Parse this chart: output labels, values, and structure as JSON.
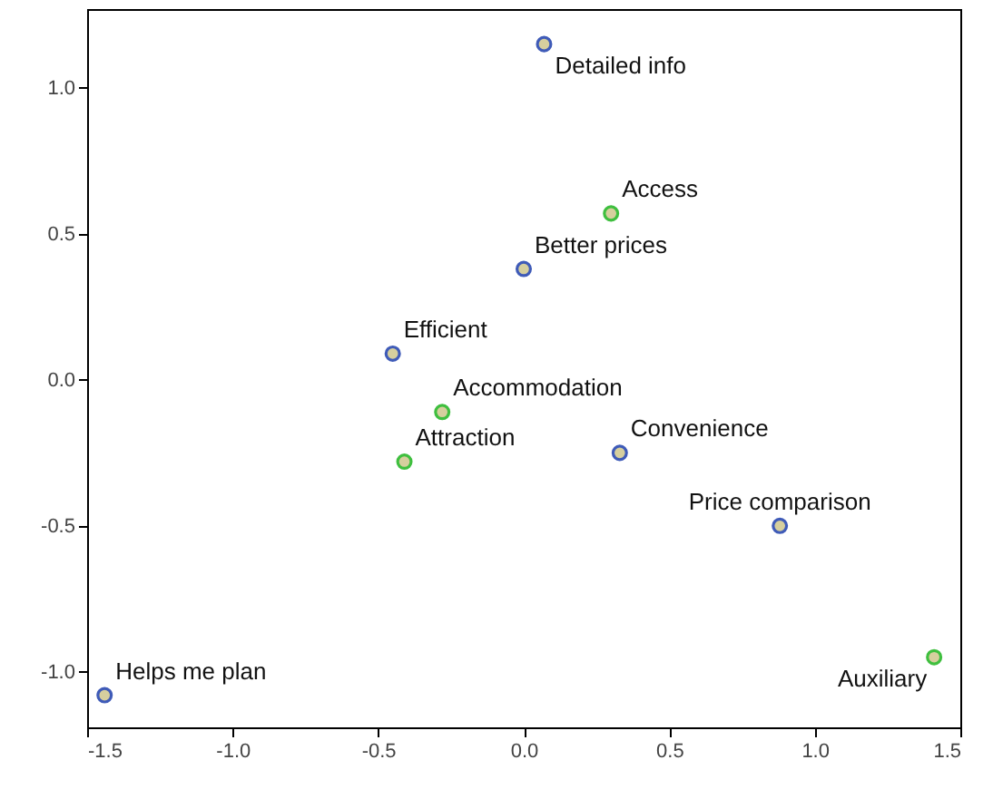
{
  "chart_data": {
    "type": "scatter",
    "xlim": [
      -1.5,
      1.5
    ],
    "ylim": [
      -1.19,
      1.27
    ],
    "xticks": [
      {
        "value": -1.5,
        "label": "-1.5"
      },
      {
        "value": -1,
        "label": "-1.0"
      },
      {
        "value": -0.5,
        "label": "-0.5"
      },
      {
        "value": 0,
        "label": "0.0"
      },
      {
        "value": 0.5,
        "label": "0.5"
      },
      {
        "value": 1,
        "label": "1.0"
      },
      {
        "value": 1.5,
        "label": "1.5"
      }
    ],
    "yticks": [
      {
        "value": -1,
        "label": "-1.0"
      },
      {
        "value": -0.5,
        "label": "-0.5"
      },
      {
        "value": 0,
        "label": "0.0"
      },
      {
        "value": 0.5,
        "label": "0.5"
      },
      {
        "value": 1,
        "label": "1.0"
      }
    ],
    "grid": false,
    "marker": "circle",
    "series": [
      {
        "color": "#3f5bb8",
        "x": [
          0.07,
          0.0,
          -0.45,
          0.33,
          0.88,
          -1.44
        ],
        "values": [
          1.15,
          0.38,
          0.09,
          -0.25,
          -0.5,
          -1.08
        ]
      },
      {
        "color": "#3fbf3f",
        "x": [
          0.3,
          -0.28,
          -0.41,
          1.41
        ],
        "values": [
          0.57,
          -0.11,
          -0.28,
          -0.95
        ]
      }
    ],
    "annotations": [
      {
        "text": "Detailed info",
        "x": 0.07,
        "y": 1.15
      },
      {
        "text": "Better prices",
        "x": 0.0,
        "y": 0.38
      },
      {
        "text": "Efficient",
        "x": -0.45,
        "y": 0.09
      },
      {
        "text": "Convenience",
        "x": 0.33,
        "y": -0.25
      },
      {
        "text": "Price comparison",
        "x": 0.88,
        "y": -0.5
      },
      {
        "text": "Helps me plan",
        "x": -1.44,
        "y": -1.08
      },
      {
        "text": "Access",
        "x": 0.3,
        "y": 0.57
      },
      {
        "text": "Accommodation",
        "x": -0.28,
        "y": -0.11
      },
      {
        "text": "Attraction",
        "x": -0.41,
        "y": -0.28
      },
      {
        "text": "Auxiliary",
        "x": 1.41,
        "y": -0.95
      }
    ]
  }
}
